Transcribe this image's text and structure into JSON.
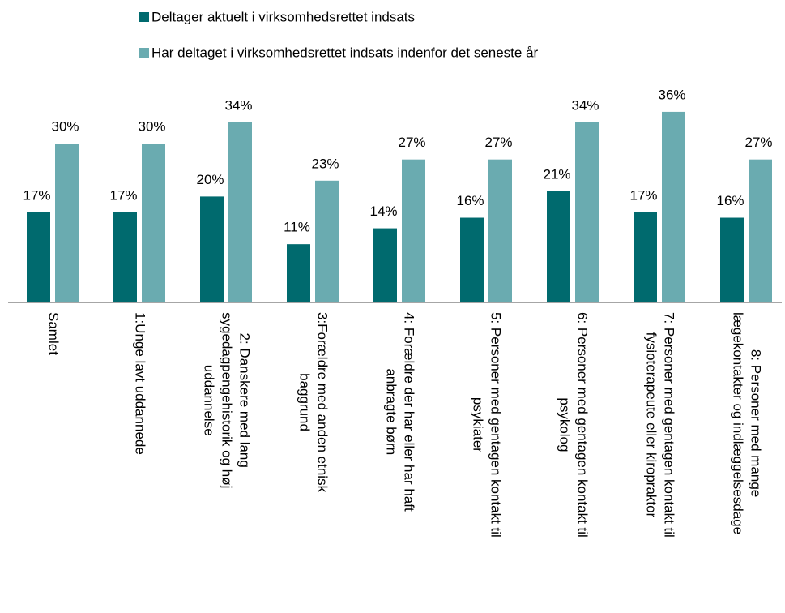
{
  "chart_data": {
    "type": "bar",
    "categories": [
      [
        "Samlet"
      ],
      [
        "1:Unge lavt uddannede"
      ],
      [
        "2: Danskere med lang",
        "sygedagpengehistorik og høj",
        "uddannelse"
      ],
      [
        "3:Forældre med anden etnisk",
        "baggrund"
      ],
      [
        "4: Forældre der har eller har haft",
        "anbragte børn"
      ],
      [
        "5: Personer med gentagen kontakt til",
        "psykiater"
      ],
      [
        "6: Personer med gentagen kontakt til",
        "psykolog"
      ],
      [
        "7: Personer med gentagen kontakt til",
        "fysioterapeute eller kiropraktor"
      ],
      [
        "8: Personer med mange",
        "lægekontakter og indlæggelsesdage"
      ]
    ],
    "series": [
      {
        "name": "Deltager aktuelt i virksomhedsrettet indsats",
        "color": "#006a6e",
        "values": [
          17,
          17,
          20,
          11,
          14,
          16,
          21,
          17,
          16
        ],
        "value_labels": [
          "17%",
          "17%",
          "20%",
          "11%",
          "14%",
          "16%",
          "21%",
          "17%",
          "16%"
        ]
      },
      {
        "name": "Har deltaget i virksomhedsrettet indsats indenfor det seneste år",
        "color": "#6aabb0",
        "values": [
          30,
          30,
          34,
          23,
          27,
          27,
          34,
          36,
          27
        ],
        "value_labels": [
          "30%",
          "30%",
          "34%",
          "23%",
          "27%",
          "27%",
          "34%",
          "36%",
          "27%"
        ]
      }
    ]
  }
}
